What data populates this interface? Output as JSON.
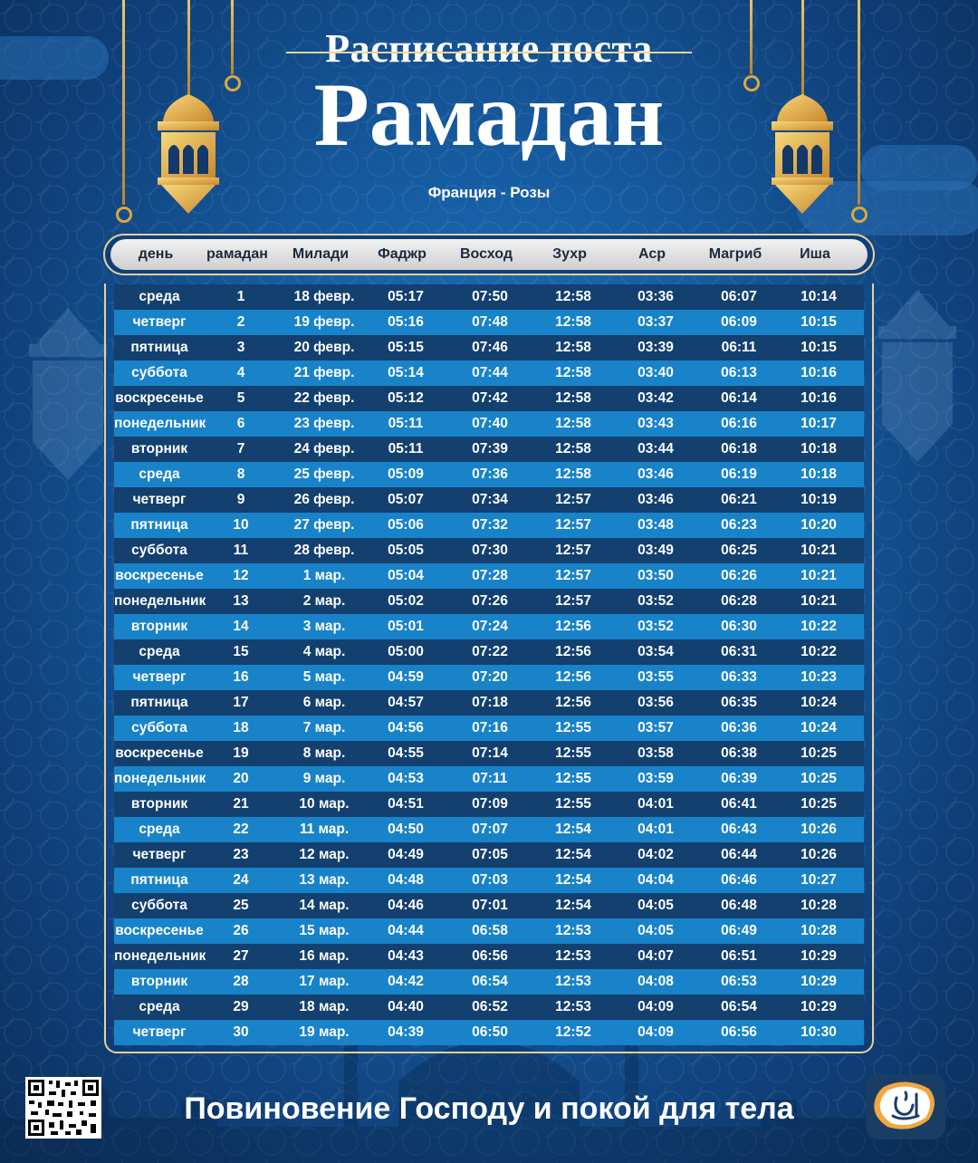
{
  "title_top": "Расписание поста",
  "title_main": "Рамадан",
  "subtitle": "Франция - Розы",
  "headers": [
    "день",
    "рамадан",
    "Милади",
    "Фаджр",
    "Восход",
    "Зухр",
    "Аср",
    "Магриб",
    "Иша"
  ],
  "rows": [
    [
      "среда",
      "1",
      "18 февр.",
      "05:17",
      "07:50",
      "12:58",
      "03:36",
      "06:07",
      "10:14"
    ],
    [
      "четверг",
      "2",
      "19 февр.",
      "05:16",
      "07:48",
      "12:58",
      "03:37",
      "06:09",
      "10:15"
    ],
    [
      "пятница",
      "3",
      "20 февр.",
      "05:15",
      "07:46",
      "12:58",
      "03:39",
      "06:11",
      "10:15"
    ],
    [
      "суббота",
      "4",
      "21 февр.",
      "05:14",
      "07:44",
      "12:58",
      "03:40",
      "06:13",
      "10:16"
    ],
    [
      "воскресенье",
      "5",
      "22 февр.",
      "05:12",
      "07:42",
      "12:58",
      "03:42",
      "06:14",
      "10:16"
    ],
    [
      "понедельник",
      "6",
      "23 февр.",
      "05:11",
      "07:40",
      "12:58",
      "03:43",
      "06:16",
      "10:17"
    ],
    [
      "вторник",
      "7",
      "24 февр.",
      "05:11",
      "07:39",
      "12:58",
      "03:44",
      "06:18",
      "10:18"
    ],
    [
      "среда",
      "8",
      "25 февр.",
      "05:09",
      "07:36",
      "12:58",
      "03:46",
      "06:19",
      "10:18"
    ],
    [
      "четверг",
      "9",
      "26 февр.",
      "05:07",
      "07:34",
      "12:57",
      "03:46",
      "06:21",
      "10:19"
    ],
    [
      "пятница",
      "10",
      "27 февр.",
      "05:06",
      "07:32",
      "12:57",
      "03:48",
      "06:23",
      "10:20"
    ],
    [
      "суббота",
      "11",
      "28 февр.",
      "05:05",
      "07:30",
      "12:57",
      "03:49",
      "06:25",
      "10:21"
    ],
    [
      "воскресенье",
      "12",
      "1 мар.",
      "05:04",
      "07:28",
      "12:57",
      "03:50",
      "06:26",
      "10:21"
    ],
    [
      "понедельник",
      "13",
      "2 мар.",
      "05:02",
      "07:26",
      "12:57",
      "03:52",
      "06:28",
      "10:21"
    ],
    [
      "вторник",
      "14",
      "3 мар.",
      "05:01",
      "07:24",
      "12:56",
      "03:52",
      "06:30",
      "10:22"
    ],
    [
      "среда",
      "15",
      "4 мар.",
      "05:00",
      "07:22",
      "12:56",
      "03:54",
      "06:31",
      "10:22"
    ],
    [
      "четверг",
      "16",
      "5 мар.",
      "04:59",
      "07:20",
      "12:56",
      "03:55",
      "06:33",
      "10:23"
    ],
    [
      "пятница",
      "17",
      "6 мар.",
      "04:57",
      "07:18",
      "12:56",
      "03:56",
      "06:35",
      "10:24"
    ],
    [
      "суббота",
      "18",
      "7 мар.",
      "04:56",
      "07:16",
      "12:55",
      "03:57",
      "06:36",
      "10:24"
    ],
    [
      "воскресенье",
      "19",
      "8 мар.",
      "04:55",
      "07:14",
      "12:55",
      "03:58",
      "06:38",
      "10:25"
    ],
    [
      "понедельник",
      "20",
      "9 мар.",
      "04:53",
      "07:11",
      "12:55",
      "03:59",
      "06:39",
      "10:25"
    ],
    [
      "вторник",
      "21",
      "10 мар.",
      "04:51",
      "07:09",
      "12:55",
      "04:01",
      "06:41",
      "10:25"
    ],
    [
      "среда",
      "22",
      "11 мар.",
      "04:50",
      "07:07",
      "12:54",
      "04:01",
      "06:43",
      "10:26"
    ],
    [
      "четверг",
      "23",
      "12 мар.",
      "04:49",
      "07:05",
      "12:54",
      "04:02",
      "06:44",
      "10:26"
    ],
    [
      "пятница",
      "24",
      "13 мар.",
      "04:48",
      "07:03",
      "12:54",
      "04:04",
      "06:46",
      "10:27"
    ],
    [
      "суббота",
      "25",
      "14 мар.",
      "04:46",
      "07:01",
      "12:54",
      "04:05",
      "06:48",
      "10:28"
    ],
    [
      "воскресенье",
      "26",
      "15 мар.",
      "04:44",
      "06:58",
      "12:53",
      "04:05",
      "06:49",
      "10:28"
    ],
    [
      "понедельник",
      "27",
      "16 мар.",
      "04:43",
      "06:56",
      "12:53",
      "04:07",
      "06:51",
      "10:29"
    ],
    [
      "вторник",
      "28",
      "17 мар.",
      "04:42",
      "06:54",
      "12:53",
      "04:08",
      "06:53",
      "10:29"
    ],
    [
      "среда",
      "29",
      "18 мар.",
      "04:40",
      "06:52",
      "12:53",
      "04:09",
      "06:54",
      "10:29"
    ],
    [
      "четверг",
      "30",
      "19 мар.",
      "04:39",
      "06:50",
      "12:52",
      "04:09",
      "06:56",
      "10:30"
    ]
  ],
  "footer_text": "Повиновение Господу и покой для тела",
  "icons": {
    "lanterns": "lantern-icon",
    "qr": "qr-code-icon",
    "logo": "app-logo-icon"
  },
  "colors": {
    "row_dark": "#13406f",
    "row_light": "#1883c9",
    "frame_gold": "#e6cf9d",
    "lantern_gold": "#e0ac3a"
  }
}
